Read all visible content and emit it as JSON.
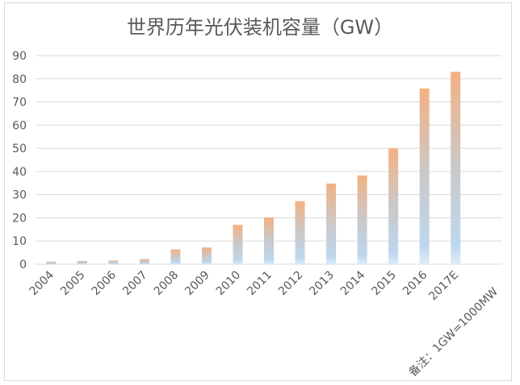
{
  "chart_data": {
    "type": "bar",
    "title": "世界历年光伏装机容量（GW）",
    "categories": [
      "2004",
      "2005",
      "2006",
      "2007",
      "2008",
      "2009",
      "2010",
      "2011",
      "2012",
      "2013",
      "2014",
      "2015",
      "2016",
      "2017E"
    ],
    "values": [
      1.1,
      1.4,
      1.6,
      2.2,
      6.4,
      7.2,
      17,
      20.2,
      27.2,
      34.8,
      38.3,
      50,
      75.8,
      83
    ],
    "ylim": [
      0,
      90
    ],
    "yticks": [
      0,
      10,
      20,
      30,
      40,
      50,
      60,
      70,
      80,
      90
    ],
    "grid": true,
    "bar_gradient": {
      "top": "#f4b183",
      "middle": "#c9c9c9",
      "bottom": "#bdd7ee"
    },
    "annotation": "备注：1GW=1000MW"
  }
}
